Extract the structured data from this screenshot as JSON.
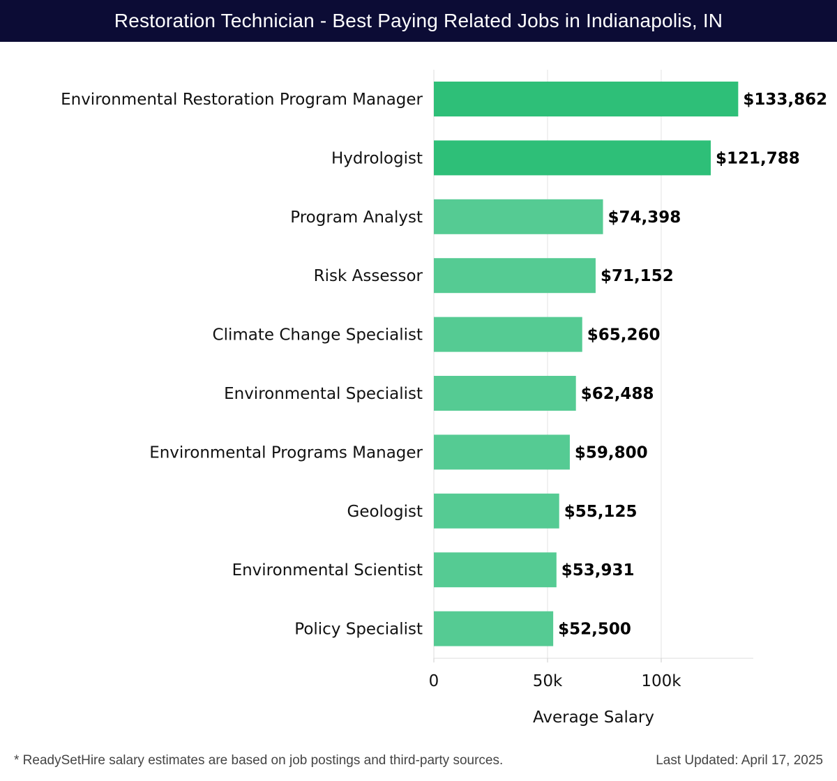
{
  "header": {
    "title": "Restoration Technician - Best Paying Related Jobs in Indianapolis, IN"
  },
  "chart_data": {
    "type": "bar",
    "orientation": "horizontal",
    "categories": [
      "Environmental Restoration Program Manager",
      "Hydrologist",
      "Program Analyst",
      "Risk Assessor",
      "Climate Change Specialist",
      "Environmental Specialist",
      "Environmental Programs Manager",
      "Geologist",
      "Environmental Scientist",
      "Policy Specialist"
    ],
    "values": [
      133862,
      121788,
      74398,
      71152,
      65260,
      62488,
      59800,
      55125,
      53931,
      52500
    ],
    "value_labels": [
      "$133,862",
      "$121,788",
      "$74,398",
      "$71,152",
      "$65,260",
      "$62,488",
      "$59,800",
      "$55,125",
      "$53,931",
      "$52,500"
    ],
    "xlabel": "Average Salary",
    "xlim": [
      0,
      140500
    ],
    "xticks": [
      0,
      50000,
      100000
    ],
    "xtick_labels": [
      "0",
      "50k",
      "100k"
    ],
    "grid": "vertical",
    "colors": {
      "top": "#2ebf78",
      "rest": "#55cb93"
    }
  },
  "footer": {
    "note": "* ReadySetHire salary estimates are based on job postings and third-party sources.",
    "updated": "Last Updated: April 17, 2025"
  }
}
